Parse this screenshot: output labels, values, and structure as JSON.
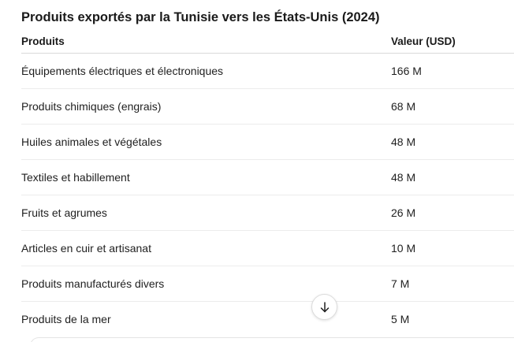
{
  "title": "Produits exportés par la Tunisie vers les États-Unis (2024)",
  "table": {
    "headers": {
      "product": "Produits",
      "value": "Valeur (USD)"
    },
    "rows": [
      {
        "product": "Équipements électriques et électroniques",
        "value": "166 M"
      },
      {
        "product": "Produits chimiques (engrais)",
        "value": "68 M"
      },
      {
        "product": "Huiles animales et végétales",
        "value": "48 M"
      },
      {
        "product": "Textiles et habillement",
        "value": "48 M"
      },
      {
        "product": "Fruits et agrumes",
        "value": "26 M"
      },
      {
        "product": "Articles en cuir et artisanat",
        "value": "10 M"
      },
      {
        "product": "Produits manufacturés divers",
        "value": "7 M"
      },
      {
        "product": "Produits de la mer",
        "value": "5 M"
      }
    ]
  },
  "scroll_button": {
    "icon": "arrow-down-icon"
  }
}
